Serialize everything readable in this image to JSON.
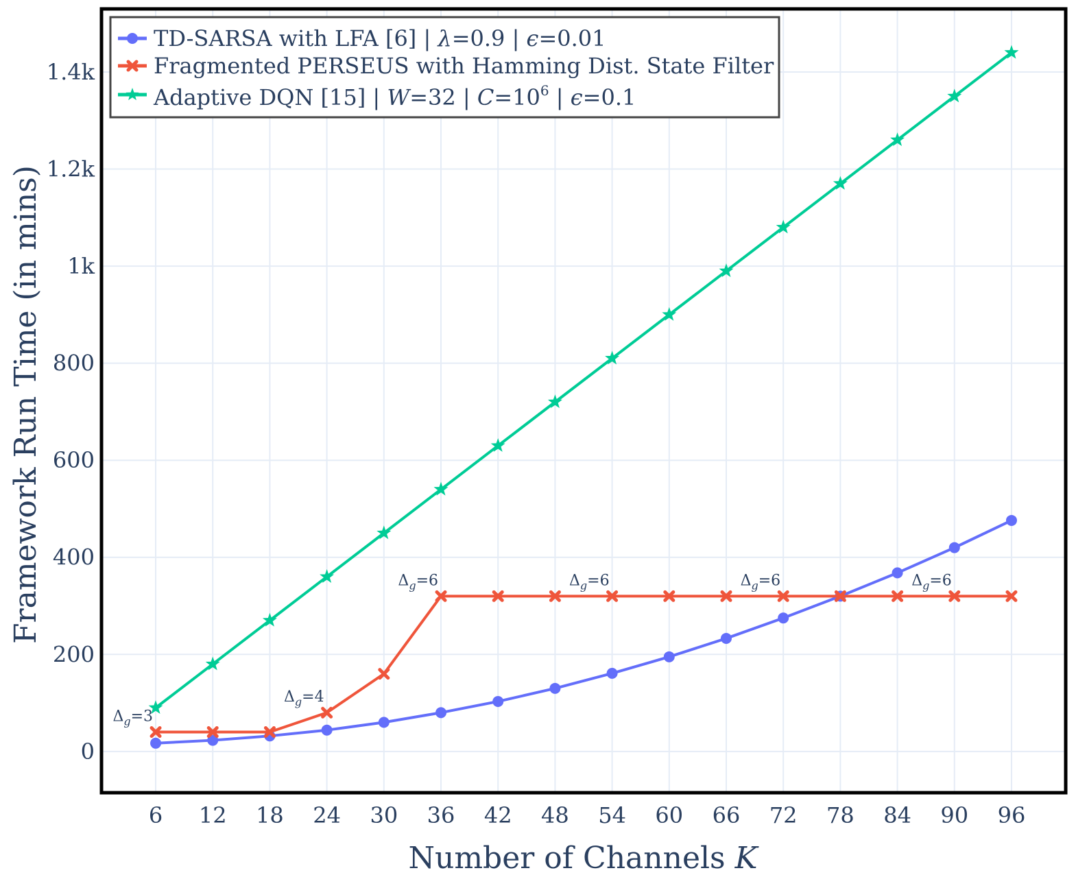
{
  "chart_data": {
    "type": "line",
    "xlabel": "Number of Channels K",
    "ylabel": "Framework Run Time (in mins)",
    "x": [
      6,
      12,
      18,
      24,
      30,
      36,
      42,
      48,
      54,
      60,
      66,
      72,
      78,
      84,
      90,
      96
    ],
    "xticks": [
      "6",
      "12",
      "18",
      "24",
      "30",
      "36",
      "42",
      "48",
      "54",
      "60",
      "66",
      "72",
      "78",
      "84",
      "90",
      "96"
    ],
    "xlim": [
      0.3,
      101.7
    ],
    "ylim": [
      -85,
      1530
    ],
    "yticks": [
      {
        "value": 0,
        "label": "0"
      },
      {
        "value": 200,
        "label": "200"
      },
      {
        "value": 400,
        "label": "400"
      },
      {
        "value": 600,
        "label": "600"
      },
      {
        "value": 800,
        "label": "800"
      },
      {
        "value": 1000,
        "label": "1k"
      },
      {
        "value": 1200,
        "label": "1.2k"
      },
      {
        "value": 1400,
        "label": "1.4k"
      }
    ],
    "grid": true,
    "legend_position": "top-left",
    "series": [
      {
        "name": "TD-SARSA with LFA [6] | λ=0.9 | ϵ=0.01",
        "color": "#636efa",
        "marker": "circle",
        "values": [
          17,
          23,
          32,
          44,
          60,
          80,
          103,
          130,
          161,
          195,
          233,
          275,
          320,
          368,
          420,
          476
        ]
      },
      {
        "name": "Fragmented PERSEUS with Hamming Dist. State Filter",
        "color": "#ef553b",
        "marker": "x",
        "values": [
          40,
          40,
          40,
          80,
          160,
          320,
          320,
          320,
          320,
          320,
          320,
          320,
          320,
          320,
          320,
          320
        ]
      },
      {
        "name": "Adaptive DQN [15] | W=32 | C=10⁶ | ϵ=0.1",
        "color": "#00cc96",
        "marker": "star",
        "values": [
          90,
          180,
          270,
          360,
          450,
          540,
          630,
          720,
          810,
          900,
          990,
          1080,
          1170,
          1260,
          1350,
          1440
        ]
      }
    ],
    "annotations": [
      {
        "text": "Δg=3",
        "x": 6,
        "y": 40
      },
      {
        "text": "Δg=4",
        "x": 24,
        "y": 80
      },
      {
        "text": "Δg=6",
        "x": 36,
        "y": 320
      },
      {
        "text": "Δg=6",
        "x": 54,
        "y": 320
      },
      {
        "text": "Δg=6",
        "x": 72,
        "y": 320
      },
      {
        "text": "Δg=6",
        "x": 90,
        "y": 320
      }
    ]
  }
}
